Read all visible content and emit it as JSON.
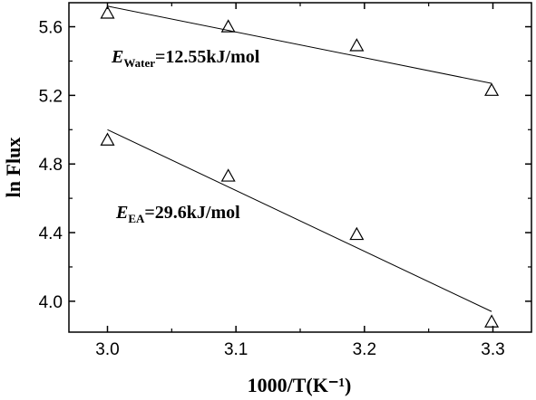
{
  "chart_data": {
    "type": "scatter",
    "xlabel": "1000/T(K⁻¹)",
    "ylabel": "ln Flux",
    "xlim": [
      2.97,
      3.33
    ],
    "ylim": [
      3.82,
      5.74
    ],
    "xticks": [
      3.0,
      3.1,
      3.2,
      3.3
    ],
    "xtick_labels": [
      "3.0",
      "3.1",
      "3.2",
      "3.3"
    ],
    "yticks": [
      4.0,
      4.4,
      4.8,
      5.2,
      5.6
    ],
    "ytick_labels": [
      "4.0",
      "4.4",
      "4.8",
      "5.2",
      "5.6"
    ],
    "grid": false,
    "marker": "open-triangle",
    "series": [
      {
        "points": [
          [
            3.0,
            5.68
          ],
          [
            3.094,
            5.6
          ],
          [
            3.194,
            5.49
          ],
          [
            3.299,
            5.23
          ]
        ],
        "fit": [
          [
            3.0,
            5.72
          ],
          [
            3.299,
            5.27
          ]
        ],
        "annotation": {
          "main": "E",
          "sub": "Water",
          "rest": "=12.55kJ/mol"
        }
      },
      {
        "points": [
          [
            3.0,
            4.94
          ],
          [
            3.094,
            4.73
          ],
          [
            3.194,
            4.39
          ],
          [
            3.299,
            3.88
          ]
        ],
        "fit": [
          [
            3.0,
            5.0
          ],
          [
            3.299,
            3.94
          ]
        ],
        "annotation": {
          "main": "E",
          "sub": "EA",
          "rest": "=29.6kJ/mol"
        }
      }
    ]
  }
}
